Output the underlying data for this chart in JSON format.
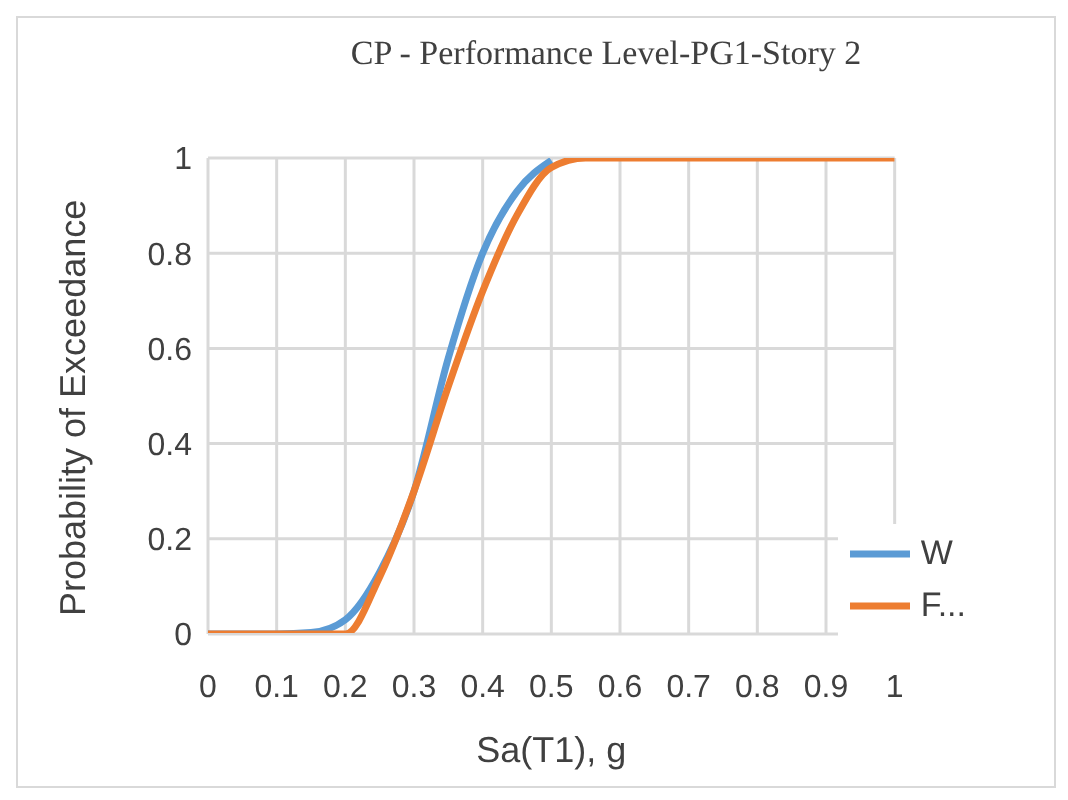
{
  "chart_data": {
    "type": "line",
    "title": "CP - Performance Level-PG1-Story 2",
    "xlabel": "Sa(T1), g",
    "ylabel": "Probability of Exceedance",
    "x": [
      0,
      0.1,
      0.15,
      0.2,
      0.25,
      0.3,
      0.35,
      0.4,
      0.45,
      0.5,
      0.55,
      0.6,
      0.7,
      0.8,
      0.9,
      1
    ],
    "series": [
      {
        "name": "W",
        "color": "#5b9bd5",
        "values": [
          0,
          0,
          0.003,
          0.03,
          0.13,
          0.3,
          0.58,
          0.8,
          0.93,
          0.995,
          null,
          null,
          null,
          null,
          null,
          null
        ]
      },
      {
        "name": "F...",
        "color": "#ed7d31",
        "values": [
          0,
          0,
          0,
          0,
          0.12,
          0.3,
          0.52,
          0.72,
          0.88,
          0.98,
          1,
          1,
          1,
          1,
          1,
          1
        ]
      }
    ],
    "xlim": [
      0,
      1
    ],
    "xticks": [
      0,
      0.1,
      0.2,
      0.3,
      0.4,
      0.5,
      0.6,
      0.7,
      0.8,
      0.9,
      1
    ],
    "ylim": [
      0,
      1
    ],
    "yticks": [
      0,
      0.2,
      0.4,
      0.6,
      0.8,
      1
    ],
    "grid": true,
    "legend": "bottom right",
    "marker": "none",
    "line_style": "solid"
  }
}
